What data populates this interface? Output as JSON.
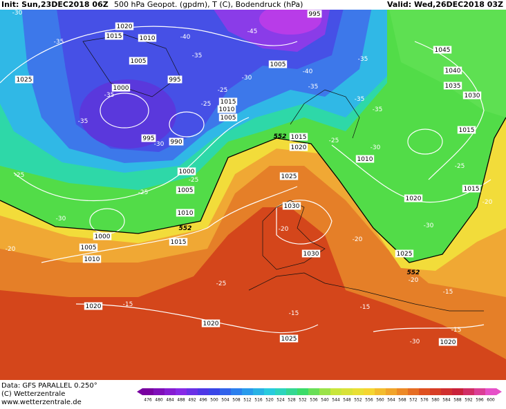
{
  "header": {
    "init": "Init: Sun,23DEC2018 06Z",
    "parameters": "500 hPa Geopot. (gpdm), T (C), Bodendruck (hPa)",
    "valid": "Valid: Wed,26DEC2018 03Z"
  },
  "map": {
    "pressure_labels": [
      "1020",
      "1015",
      "1010",
      "995",
      "1005",
      "1025",
      "1000",
      "995",
      "1005",
      "1045",
      "1040",
      "1035",
      "1030",
      "1015",
      "1010",
      "1005",
      "1015",
      "995",
      "990",
      "1015",
      "1020",
      "1010",
      "1000",
      "1005",
      "1025",
      "1015",
      "1020",
      "1010",
      "1030",
      "1000",
      "1015",
      "1005",
      "1010",
      "1030",
      "1025",
      "1020",
      "1020",
      "1025",
      "1020"
    ],
    "temperature_labels": [
      "-30",
      "-35",
      "-40",
      "-35",
      "-45",
      "-35",
      "-40",
      "-30",
      "-35",
      "-35",
      "-25",
      "-35",
      "-35",
      "-25",
      "-35",
      "-30",
      "-25",
      "-30",
      "-25",
      "-25",
      "-25",
      "-25",
      "-20",
      "-30",
      "-20",
      "-20",
      "-30",
      "-20",
      "-25",
      "-20",
      "-15",
      "-15",
      "-15",
      "-15",
      "-15",
      "-30"
    ],
    "height_labels": [
      "552",
      "552",
      "552"
    ]
  },
  "footer": {
    "data": "Data: GFS PARALLEL 0.250°",
    "copyright": "(C) Wetterzentrale",
    "url": "www.wetterzentrale.de"
  },
  "colorbar": {
    "ticks": [
      "476",
      "480",
      "484",
      "488",
      "492",
      "496",
      "500",
      "504",
      "508",
      "512",
      "516",
      "520",
      "524",
      "528",
      "532",
      "536",
      "540",
      "544",
      "548",
      "552",
      "556",
      "560",
      "564",
      "568",
      "572",
      "576",
      "580",
      "584",
      "588",
      "592",
      "596",
      "600"
    ]
  }
}
